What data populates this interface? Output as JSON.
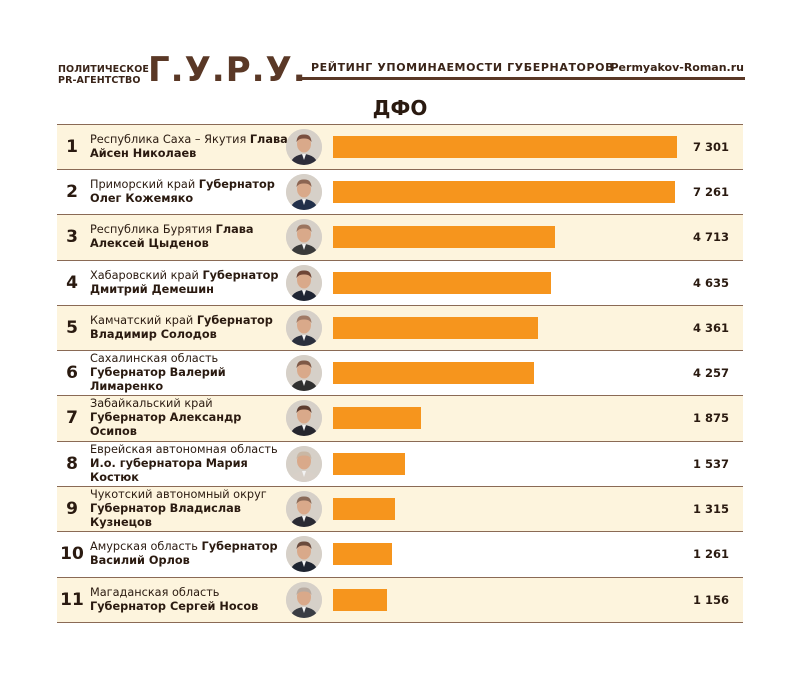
{
  "header": {
    "agency_line1": "ПОЛИТИЧЕСКОЕ",
    "agency_line2": "PR-АГЕНТСТВО",
    "logo": "Г.У.Р.У.",
    "subtitle": "РЕЙТИНГ УПОМИНАЕМОСТИ ГУБЕРНАТОРОВ",
    "site": "Permyakov-Roman.ru"
  },
  "region_title": "ДФО",
  "colors": {
    "bar": "#f6951d",
    "stripe": "#fdf4dd",
    "text": "#2a1a10",
    "brand": "#5a3826"
  },
  "chart_data": {
    "type": "bar",
    "orientation": "horizontal",
    "title": "ДФО",
    "xlim": [
      0,
      7301
    ],
    "rows": [
      {
        "rank": "1",
        "region": "Республика Саха – Якутия",
        "title": "Глава Айсен Николаев",
        "name": "",
        "value": 7301,
        "label": "7 301"
      },
      {
        "rank": "2",
        "region": "Приморский край",
        "title": "Губернатор",
        "name": "Олег Кожемяко",
        "value": 7261,
        "label": "7 261"
      },
      {
        "rank": "3",
        "region": "Республика Бурятия",
        "title": "Глава Алексей Цыденов",
        "name": "",
        "value": 4713,
        "label": "4 713"
      },
      {
        "rank": "4",
        "region": "Хабаровский край",
        "title": "Губернатор",
        "name": "Дмитрий Демешин",
        "value": 4635,
        "label": "4 635"
      },
      {
        "rank": "5",
        "region": "Камчатский край",
        "title": "Губернатор",
        "name": "Владимир Солодов",
        "value": 4361,
        "label": "4 361"
      },
      {
        "rank": "6",
        "region": "Сахалинская область",
        "title": "Губернатор",
        "name": "Валерий Лимаренко",
        "value": 4257,
        "label": "4 257"
      },
      {
        "rank": "7",
        "region": "Забайкальский край",
        "title": "Губернатор",
        "name": "Александр Осипов",
        "value": 1875,
        "label": "1 875"
      },
      {
        "rank": "8",
        "region": "Еврейская автономная область",
        "title": "И.о. губернатора",
        "name": "Мария Костюк",
        "value": 1537,
        "label": "1 537"
      },
      {
        "rank": "9",
        "region": "Чукотский автономный округ",
        "title": "Губернатор",
        "name": "Владислав Кузнецов",
        "value": 1315,
        "label": "1 315"
      },
      {
        "rank": "10",
        "region": "Амурская область",
        "title": "Губернатор Василий Орлов",
        "name": "",
        "value": 1261,
        "label": "1 261"
      },
      {
        "rank": "11",
        "region": "Магаданская область",
        "title": "Губернатор Сергей Носов",
        "name": "",
        "value": 1156,
        "label": "1 156"
      }
    ]
  }
}
